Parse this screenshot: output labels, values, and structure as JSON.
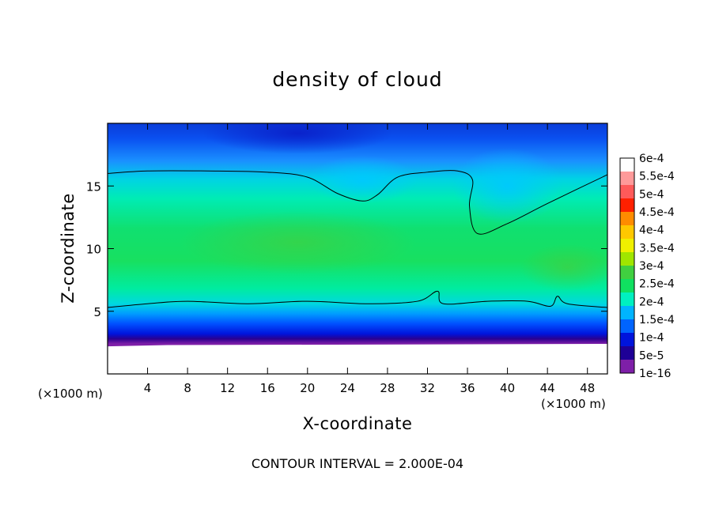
{
  "chart_data": {
    "type": "heatmap",
    "title": "density of cloud",
    "xlabel": "X-coordinate",
    "ylabel": "Z-coordinate",
    "x_unit_label": "(×1000 m)",
    "xlim": [
      0,
      50
    ],
    "ylim": [
      0,
      20
    ],
    "xticks": [
      4,
      8,
      12,
      16,
      20,
      24,
      28,
      32,
      36,
      40,
      44,
      48
    ],
    "yticks": [
      5,
      10,
      15
    ],
    "footer": "CONTOUR INTERVAL = 2.000E-04",
    "colorbar": {
      "labels": [
        "6e-4",
        "5.5e-4",
        "5e-4",
        "4.5e-4",
        "4e-4",
        "3.5e-4",
        "3e-4",
        "2.5e-4",
        "2e-4",
        "1.5e-4",
        "1e-4",
        "5e-5",
        "1e-16"
      ],
      "colors": [
        "#ffffff",
        "#ff9a9a",
        "#ff5a5a",
        "#ff2000",
        "#ff8c00",
        "#ffc800",
        "#f0f000",
        "#a0e600",
        "#40d040",
        "#10e060",
        "#00f0c0",
        "#00b4ff",
        "#0064ff",
        "#0014dc",
        "#1e0096",
        "#7e1fa8"
      ]
    },
    "contour_2e-4": [
      [
        [
          0,
          16.0
        ],
        [
          4,
          16.2
        ],
        [
          10,
          16.2
        ],
        [
          16,
          16.1
        ],
        [
          20,
          15.7
        ],
        [
          23,
          14.4
        ],
        [
          25.5,
          13.8
        ],
        [
          27,
          14.3
        ],
        [
          29,
          15.7
        ],
        [
          32,
          16.1
        ],
        [
          35,
          16.2
        ],
        [
          36.5,
          15.5
        ],
        [
          36.2,
          13.4
        ],
        [
          37,
          11.2
        ],
        [
          40,
          12.0
        ],
        [
          44,
          13.6
        ],
        [
          50,
          15.9
        ]
      ],
      [
        [
          0,
          5.3
        ],
        [
          4,
          5.6
        ],
        [
          8,
          5.8
        ],
        [
          14,
          5.6
        ],
        [
          20,
          5.8
        ],
        [
          26,
          5.6
        ],
        [
          31,
          5.8
        ],
        [
          33,
          6.6
        ],
        [
          33.6,
          5.6
        ],
        [
          38,
          5.8
        ],
        [
          42,
          5.8
        ],
        [
          44.3,
          5.4
        ],
        [
          45,
          6.2
        ],
        [
          46,
          5.6
        ],
        [
          50,
          5.3
        ]
      ]
    ]
  }
}
